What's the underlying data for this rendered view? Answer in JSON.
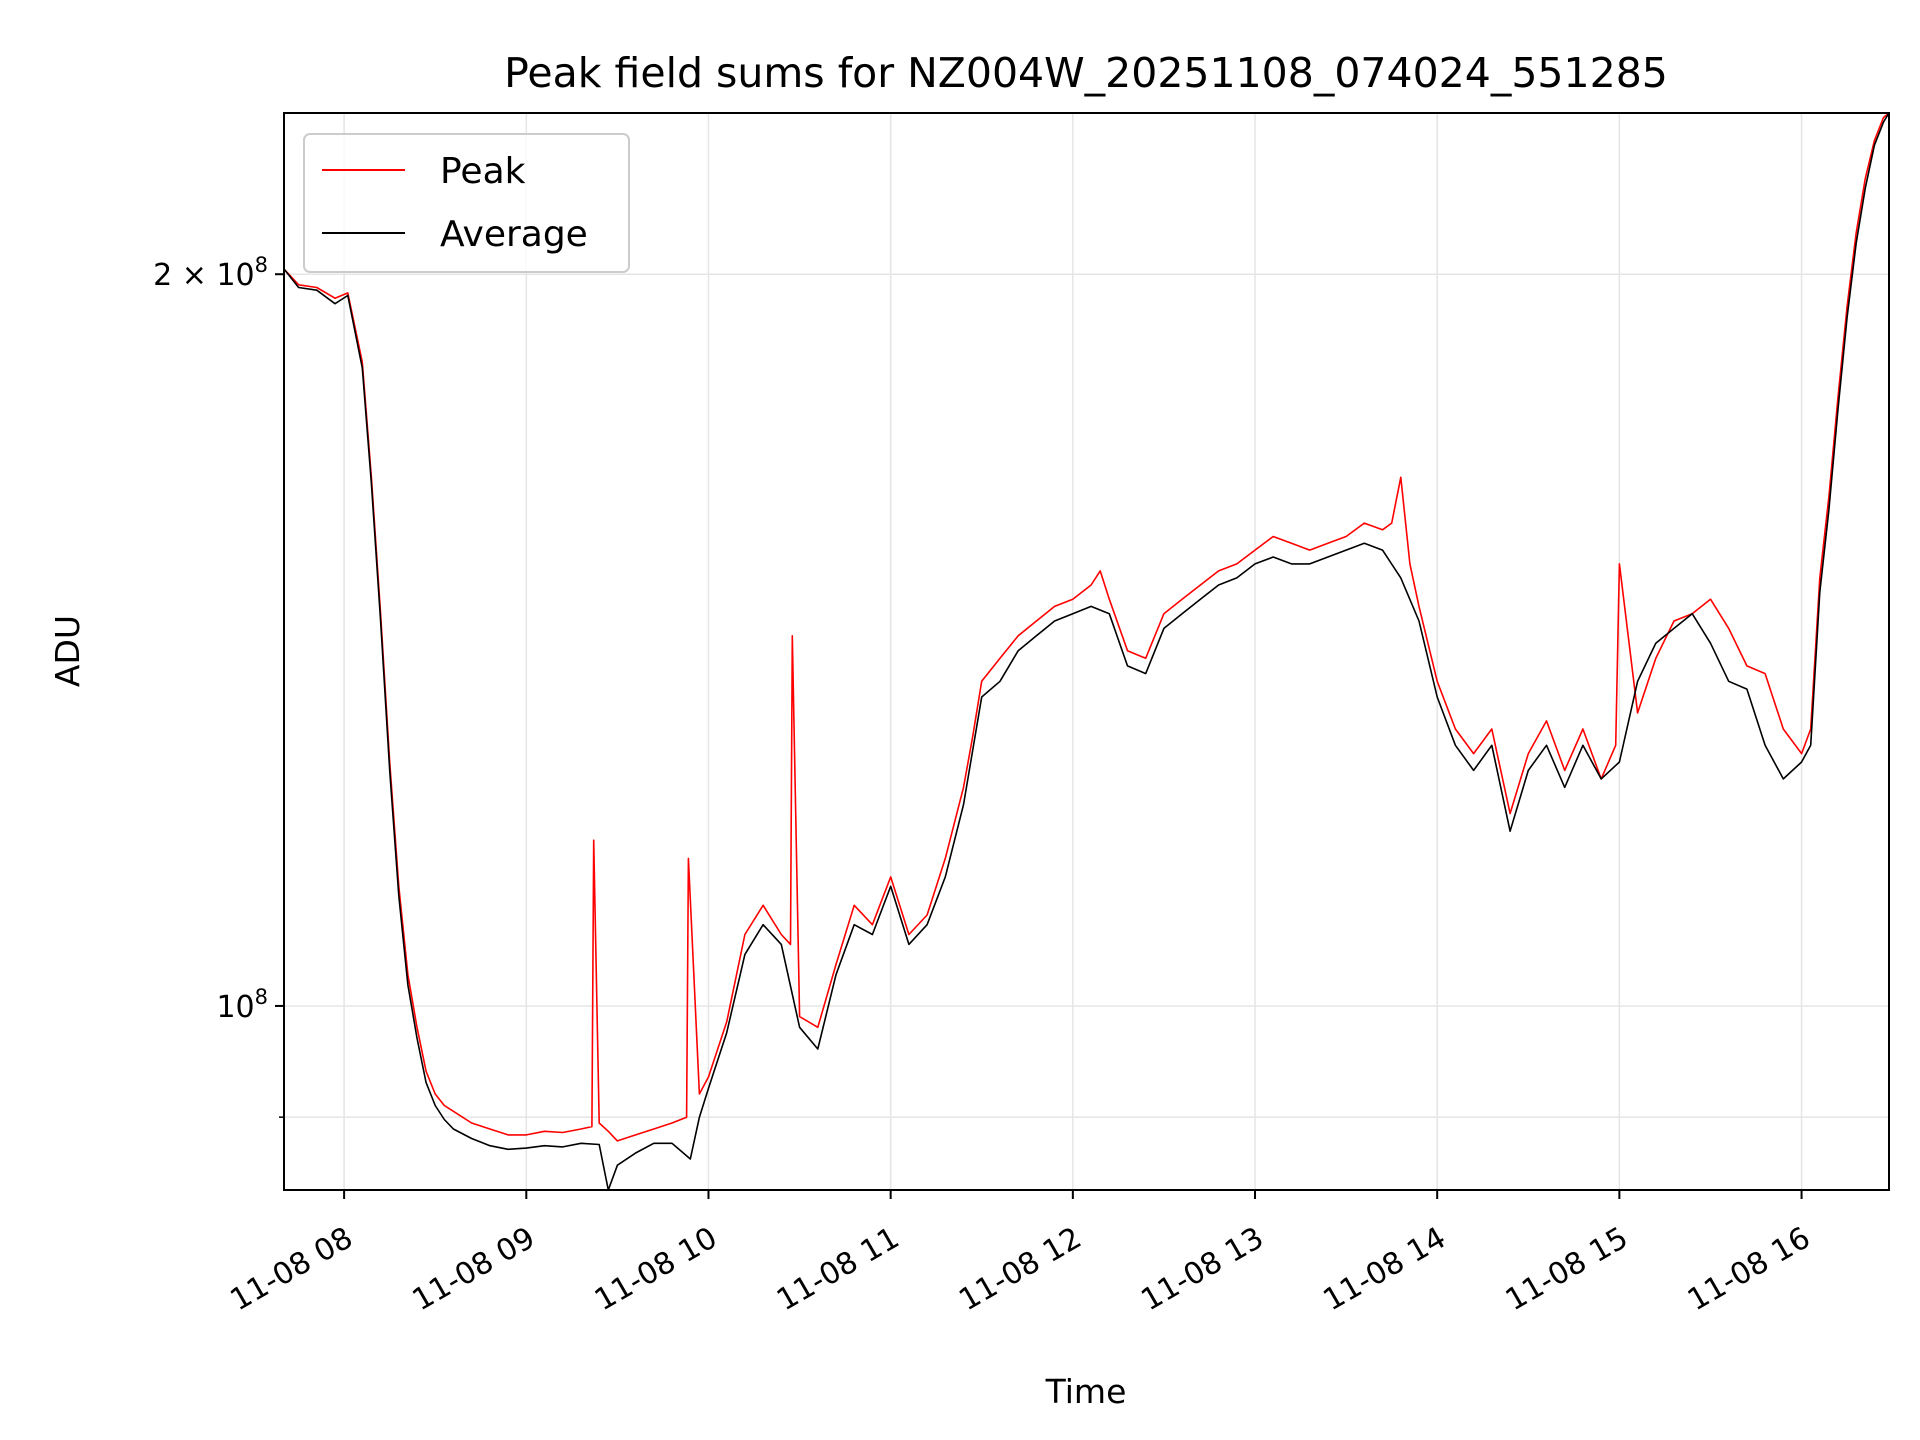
{
  "chart_data": {
    "type": "line",
    "title": "Peak field sums for NZ004W_20251108_074024_551285",
    "xlabel": "Time",
    "ylabel": "ADU",
    "yscale": "log",
    "xlim_hours": [
      7.67,
      16.48
    ],
    "ylim": [
      84000000,
      233000000
    ],
    "grid": true,
    "legend_position": "upper-left",
    "x_tick_hours": [
      8,
      9,
      10,
      11,
      12,
      13,
      14,
      15,
      16
    ],
    "x_tick_labels": [
      "11-08 08",
      "11-08 09",
      "11-08 10",
      "11-08 11",
      "11-08 12",
      "11-08 13",
      "11-08 14",
      "11-08 15",
      "11-08 16"
    ],
    "y_major_ticks": [
      {
        "value": 200000000,
        "mantissa": "2",
        "times": "×",
        "base": "10",
        "exponent": "8"
      },
      {
        "value": 100000000,
        "mantissa": "",
        "times": "",
        "base": "10",
        "exponent": "8"
      }
    ],
    "y_minor_tick_values": [
      90000000
    ],
    "series": [
      {
        "name": "Peak",
        "color": "#ff0000",
        "x_hours": [
          7.67,
          7.75,
          7.85,
          7.95,
          8.02,
          8.1,
          8.15,
          8.2,
          8.25,
          8.3,
          8.35,
          8.4,
          8.45,
          8.5,
          8.55,
          8.6,
          8.7,
          8.8,
          8.9,
          9.0,
          9.1,
          9.2,
          9.3,
          9.36,
          9.37,
          9.4,
          9.45,
          9.5,
          9.6,
          9.7,
          9.8,
          9.88,
          9.89,
          9.95,
          10.0,
          10.1,
          10.2,
          10.3,
          10.4,
          10.45,
          10.46,
          10.5,
          10.6,
          10.7,
          10.8,
          10.9,
          11.0,
          11.1,
          11.2,
          11.3,
          11.4,
          11.45,
          11.5,
          11.6,
          11.7,
          11.8,
          11.9,
          12.0,
          12.1,
          12.15,
          12.2,
          12.3,
          12.4,
          12.5,
          12.6,
          12.7,
          12.8,
          12.9,
          13.0,
          13.1,
          13.2,
          13.3,
          13.4,
          13.5,
          13.6,
          13.7,
          13.75,
          13.8,
          13.85,
          13.9,
          14.0,
          14.1,
          14.2,
          14.3,
          14.4,
          14.5,
          14.6,
          14.7,
          14.8,
          14.9,
          14.98,
          15.0,
          15.1,
          15.2,
          15.3,
          15.4,
          15.5,
          15.6,
          15.7,
          15.8,
          15.9,
          16.0,
          16.05,
          16.1,
          16.15,
          16.2,
          16.25,
          16.3,
          16.35,
          16.4,
          16.45,
          16.48
        ],
        "values": [
          201000000,
          198000000,
          197500000,
          195500000,
          196500000,
          184000000,
          165000000,
          145000000,
          126000000,
          112000000,
          103000000,
          98000000,
          94000000,
          92000000,
          91000000,
          90500000,
          89500000,
          89000000,
          88500000,
          88500000,
          88800000,
          88700000,
          89000000,
          89200000,
          117000000,
          89500000,
          88800000,
          88000000,
          88500000,
          89000000,
          89500000,
          90000000,
          115000000,
          92000000,
          93500000,
          98500000,
          107000000,
          110000000,
          107000000,
          106000000,
          142000000,
          99000000,
          98000000,
          104000000,
          110000000,
          108000000,
          113000000,
          107000000,
          109000000,
          115000000,
          123000000,
          129000000,
          136000000,
          139000000,
          142000000,
          144000000,
          146000000,
          147000000,
          149000000,
          151000000,
          147000000,
          140000000,
          139000000,
          145000000,
          147000000,
          149000000,
          151000000,
          152000000,
          154000000,
          156000000,
          155000000,
          154000000,
          155000000,
          156000000,
          158000000,
          157000000,
          158000000,
          165000000,
          152000000,
          146000000,
          136000000,
          130000000,
          127000000,
          130000000,
          120000000,
          127000000,
          131000000,
          125000000,
          130000000,
          124000000,
          128000000,
          152000000,
          132000000,
          139000000,
          144000000,
          145000000,
          147000000,
          143000000,
          138000000,
          137000000,
          130000000,
          127000000,
          130000000,
          150000000,
          162000000,
          178000000,
          194000000,
          208000000,
          219000000,
          227000000,
          232000000,
          233000000
        ]
      },
      {
        "name": "Average",
        "color": "#000000",
        "x_hours": [
          7.67,
          7.75,
          7.85,
          7.95,
          8.02,
          8.1,
          8.15,
          8.2,
          8.25,
          8.3,
          8.35,
          8.4,
          8.45,
          8.5,
          8.55,
          8.6,
          8.7,
          8.8,
          8.9,
          9.0,
          9.1,
          9.2,
          9.3,
          9.4,
          9.45,
          9.5,
          9.6,
          9.7,
          9.8,
          9.9,
          9.95,
          10.0,
          10.1,
          10.2,
          10.3,
          10.4,
          10.5,
          10.6,
          10.7,
          10.8,
          10.9,
          11.0,
          11.1,
          11.2,
          11.3,
          11.4,
          11.5,
          11.6,
          11.7,
          11.8,
          11.9,
          12.0,
          12.1,
          12.2,
          12.3,
          12.4,
          12.5,
          12.6,
          12.7,
          12.8,
          12.9,
          13.0,
          13.1,
          13.2,
          13.3,
          13.4,
          13.5,
          13.6,
          13.7,
          13.8,
          13.9,
          14.0,
          14.1,
          14.2,
          14.3,
          14.4,
          14.5,
          14.6,
          14.7,
          14.8,
          14.9,
          15.0,
          15.1,
          15.2,
          15.3,
          15.4,
          15.5,
          15.6,
          15.7,
          15.8,
          15.9,
          16.0,
          16.05,
          16.1,
          16.15,
          16.2,
          16.25,
          16.3,
          16.35,
          16.4,
          16.45,
          16.48
        ],
        "values": [
          201000000,
          197500000,
          197000000,
          194500000,
          196000000,
          183000000,
          164000000,
          144000000,
          125000000,
          111000000,
          102000000,
          97000000,
          93000000,
          91000000,
          89800000,
          89000000,
          88200000,
          87600000,
          87300000,
          87400000,
          87600000,
          87500000,
          87800000,
          87700000,
          84000000,
          86000000,
          87000000,
          87800000,
          87800000,
          86500000,
          90000000,
          92500000,
          97500000,
          105000000,
          108000000,
          106000000,
          98000000,
          96000000,
          103000000,
          108000000,
          107000000,
          112000000,
          106000000,
          108000000,
          113000000,
          121000000,
          134000000,
          136000000,
          140000000,
          142000000,
          144000000,
          145000000,
          146000000,
          145000000,
          138000000,
          137000000,
          143000000,
          145000000,
          147000000,
          149000000,
          150000000,
          152000000,
          153000000,
          152000000,
          152000000,
          153000000,
          154000000,
          155000000,
          154000000,
          150000000,
          144000000,
          134000000,
          128000000,
          125000000,
          128000000,
          118000000,
          125000000,
          128000000,
          123000000,
          128000000,
          124000000,
          126000000,
          136000000,
          141000000,
          143000000,
          145000000,
          141000000,
          136000000,
          135000000,
          128000000,
          124000000,
          126000000,
          128000000,
          148000000,
          160000000,
          176000000,
          192000000,
          206000000,
          217000000,
          226000000,
          231000000,
          233000000
        ]
      }
    ]
  }
}
